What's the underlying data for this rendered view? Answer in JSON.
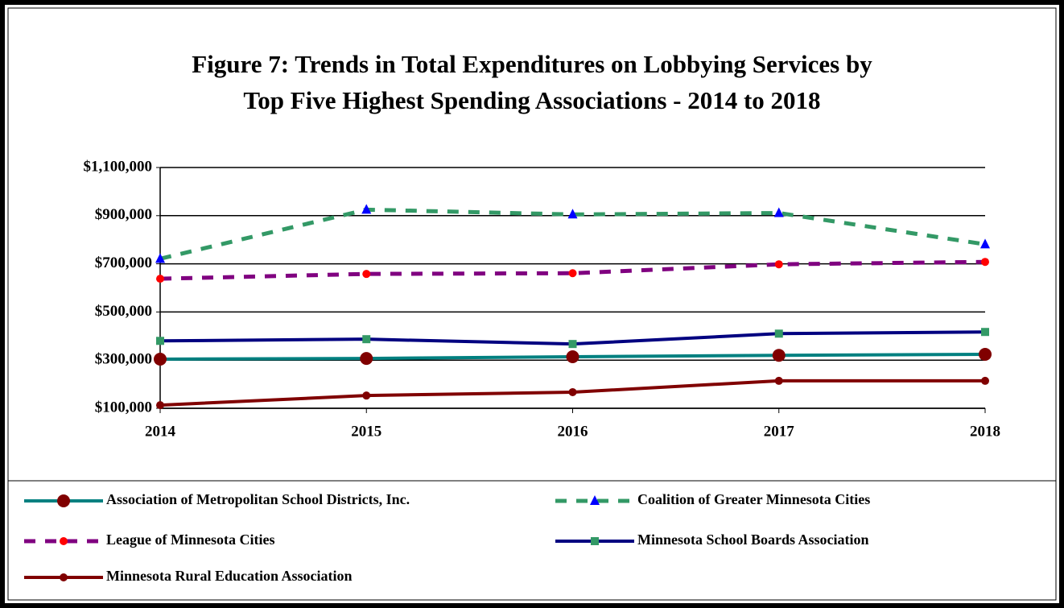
{
  "chart_data": {
    "type": "line",
    "title": "Figure 7:  Trends in Total Expenditures on Lobbying Services by",
    "subtitle": "Top Five Highest Spending Associations - 2014 to 2018",
    "categories": [
      "2014",
      "2015",
      "2016",
      "2017",
      "2018"
    ],
    "ylim": [
      100000,
      1100000
    ],
    "yticks": [
      {
        "value": 100000,
        "label": "$100,000"
      },
      {
        "value": 300000,
        "label": "$300,000"
      },
      {
        "value": 500000,
        "label": "$500,000"
      },
      {
        "value": 700000,
        "label": "$700,000"
      },
      {
        "value": 900000,
        "label": "$900,000"
      },
      {
        "value": 1100000,
        "label": "$1,100,000"
      }
    ],
    "grid": true,
    "legend": "bottom",
    "series": [
      {
        "name": "Association of Metropolitan School Districts, Inc.",
        "color": "#008080",
        "dash": false,
        "marker": "circle",
        "marker_color": "#800000",
        "values": [
          304000,
          307000,
          314000,
          320000,
          324000
        ]
      },
      {
        "name": "Coalition of Greater Minnesota Cities",
        "color": "#339966",
        "dash": true,
        "marker": "triangle",
        "marker_color": "#0000ff",
        "values": [
          721000,
          925000,
          905000,
          911000,
          781000
        ]
      },
      {
        "name": "League of Minnesota Cities",
        "color": "#800080",
        "dash": true,
        "marker": "circle",
        "marker_color": "#ff0000",
        "values": [
          638000,
          658000,
          661000,
          698000,
          708000
        ]
      },
      {
        "name": "Minnesota School Boards Association",
        "color": "#000080",
        "dash": false,
        "marker": "square",
        "marker_color": "#339966",
        "values": [
          380000,
          387000,
          367000,
          410000,
          417000
        ]
      },
      {
        "name": "Minnesota Rural Education Association",
        "color": "#800000",
        "dash": false,
        "marker": "circle",
        "marker_color": "#800000",
        "values": [
          113000,
          153000,
          167000,
          214000,
          214000
        ]
      }
    ]
  }
}
